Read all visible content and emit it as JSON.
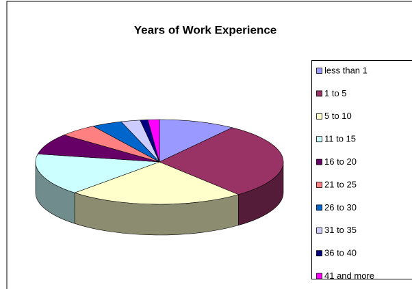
{
  "chart_data": {
    "type": "pie3d",
    "title": "Years of Work Experience",
    "categories": [
      "less than 1",
      "1 to 5",
      "5 to 10",
      "11 to 15",
      "16 to 20",
      "21 to 25",
      "26 to 30",
      "31 to 35",
      "36 to 40",
      "41 and more"
    ],
    "values": [
      10,
      29,
      23,
      16,
      8,
      5,
      4,
      2.5,
      1,
      1.5
    ],
    "colors": [
      "#9999FF",
      "#993366",
      "#FFFFCC",
      "#CCFFFF",
      "#660066",
      "#FF8080",
      "#0066CC",
      "#CCCCFF",
      "#000080",
      "#FF00FF"
    ],
    "legend": "right"
  }
}
